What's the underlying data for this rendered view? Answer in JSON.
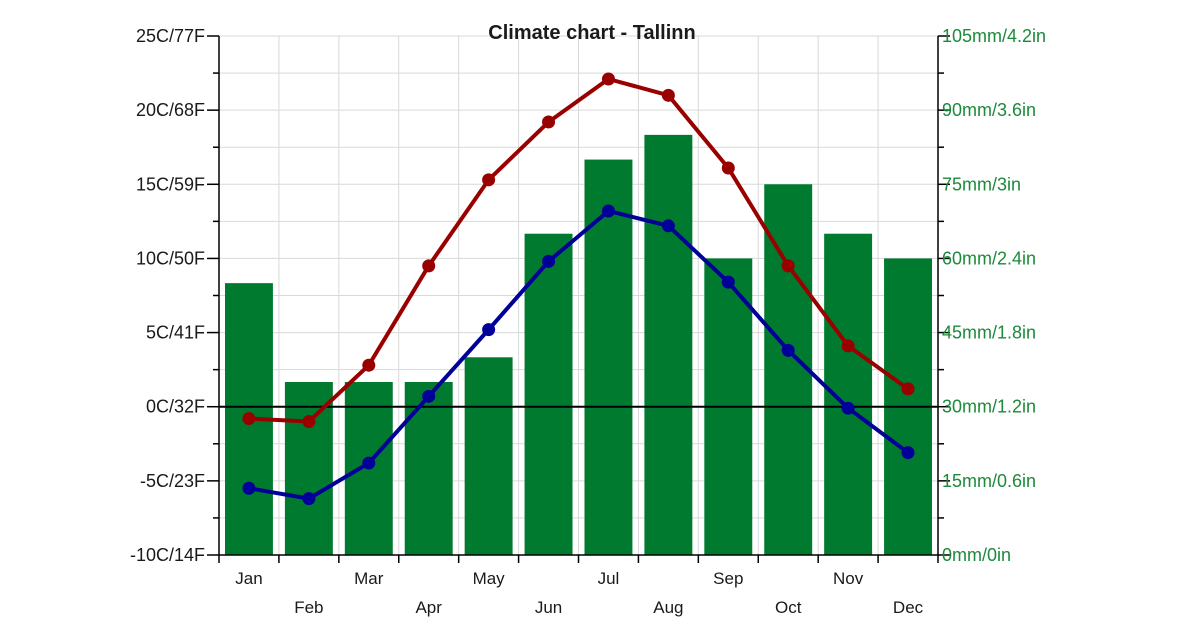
{
  "chart_data": {
    "type": "bar",
    "title": "Climate chart - Tallinn",
    "categories": [
      "Jan",
      "Feb",
      "Mar",
      "Apr",
      "May",
      "Jun",
      "Jul",
      "Aug",
      "Sep",
      "Oct",
      "Nov",
      "Dec"
    ],
    "left_axis": {
      "ticks": [
        -10,
        -5,
        0,
        5,
        10,
        15,
        20,
        25
      ],
      "tick_labels": [
        "-10C/14F",
        "-5C/23F",
        "0C/32F",
        "5C/41F",
        "10C/50F",
        "15C/59F",
        "20C/68F",
        "25C/77F"
      ],
      "ylim": [
        -10,
        25
      ]
    },
    "right_axis": {
      "ticks": [
        0,
        15,
        30,
        45,
        60,
        75,
        90,
        105
      ],
      "tick_labels": [
        "0mm/0in",
        "15mm/0.6in",
        "30mm/1.2in",
        "45mm/1.8in",
        "60mm/2.4in",
        "75mm/3in",
        "90mm/3.6in",
        "105mm/4.2in"
      ],
      "ylim": [
        0,
        105
      ]
    },
    "grid": true,
    "series": [
      {
        "kind": "bar",
        "axis": "right",
        "color": "#007a2e",
        "values": [
          55,
          35,
          35,
          35,
          40,
          65,
          80,
          85,
          60,
          75,
          65,
          60
        ]
      },
      {
        "kind": "line",
        "axis": "left",
        "color": "#990000",
        "values": [
          -0.8,
          -1.0,
          2.8,
          9.5,
          15.3,
          19.2,
          22.1,
          21.0,
          16.1,
          9.5,
          4.1,
          1.2
        ]
      },
      {
        "kind": "line",
        "axis": "left",
        "color": "#000099",
        "values": [
          -5.5,
          -6.2,
          -3.8,
          0.7,
          5.2,
          9.8,
          13.2,
          12.2,
          8.4,
          3.8,
          -0.1,
          -3.1
        ]
      }
    ]
  }
}
